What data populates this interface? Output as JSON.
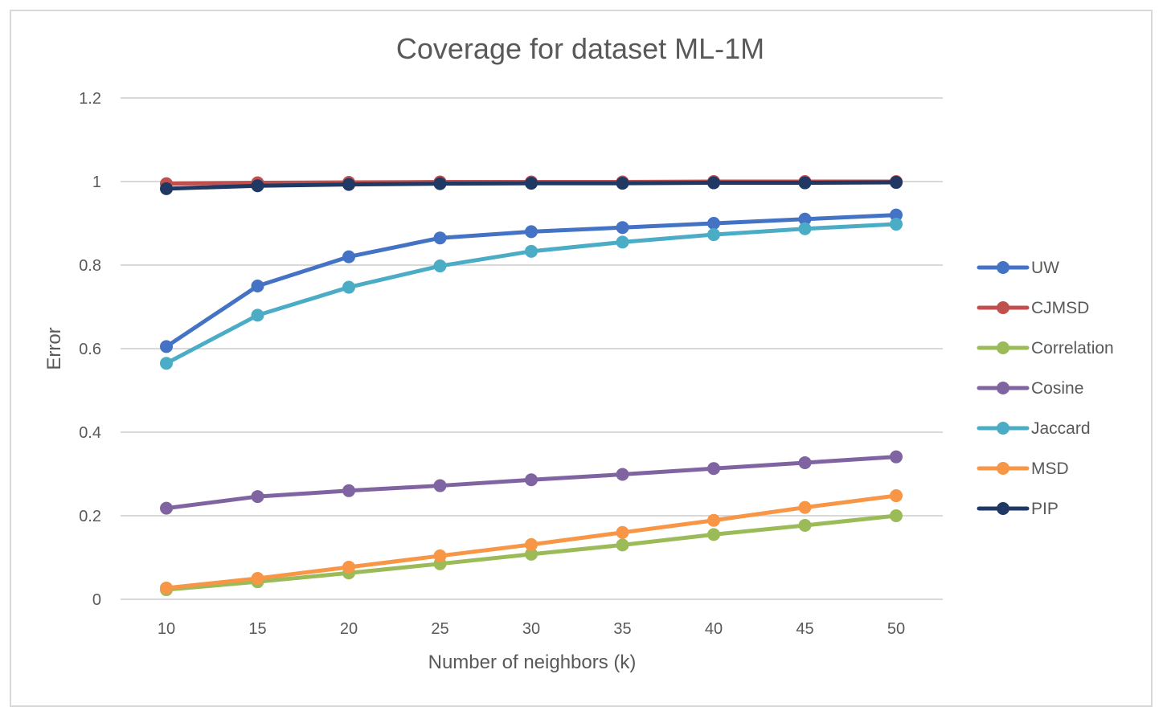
{
  "chart_data": {
    "type": "line",
    "title": "Coverage for dataset ML-1M",
    "xlabel": "Number of neighbors (k)",
    "ylabel": "Error",
    "x": [
      10,
      15,
      20,
      25,
      30,
      35,
      40,
      45,
      50
    ],
    "x_tick_labels": [
      "10",
      "15",
      "20",
      "25",
      "30",
      "35",
      "40",
      "45",
      "50"
    ],
    "ylim": [
      0,
      1.2
    ],
    "y_ticks": [
      0,
      0.2,
      0.4,
      0.6,
      0.8,
      1,
      1.2
    ],
    "y_tick_labels": [
      "0",
      "0.2",
      "0.4",
      "0.6",
      "0.8",
      "1",
      "1.2"
    ],
    "grid": true,
    "legend_position": "right",
    "series": [
      {
        "name": "UW",
        "color": "#4472c4",
        "values": [
          0.605,
          0.75,
          0.82,
          0.865,
          0.88,
          0.89,
          0.9,
          0.91,
          0.92
        ]
      },
      {
        "name": "CJMSD",
        "color": "#c0504d",
        "values": [
          0.995,
          0.997,
          0.998,
          0.999,
          0.999,
          0.999,
          1.0,
          1.0,
          1.0
        ]
      },
      {
        "name": "Correlation",
        "color": "#9bbb59",
        "values": [
          0.023,
          0.042,
          0.063,
          0.085,
          0.108,
          0.13,
          0.155,
          0.177,
          0.2
        ]
      },
      {
        "name": "Cosine",
        "color": "#8064a2",
        "values": [
          0.218,
          0.246,
          0.26,
          0.272,
          0.286,
          0.299,
          0.313,
          0.327,
          0.341
        ]
      },
      {
        "name": "Jaccard",
        "color": "#4bacc6",
        "values": [
          0.565,
          0.68,
          0.747,
          0.798,
          0.833,
          0.855,
          0.873,
          0.887,
          0.898
        ]
      },
      {
        "name": "MSD",
        "color": "#f79646",
        "values": [
          0.027,
          0.05,
          0.077,
          0.104,
          0.131,
          0.16,
          0.189,
          0.22,
          0.248
        ]
      },
      {
        "name": "PIP",
        "color": "#1f3864",
        "values": [
          0.983,
          0.99,
          0.993,
          0.995,
          0.996,
          0.996,
          0.997,
          0.997,
          0.998
        ]
      }
    ]
  }
}
